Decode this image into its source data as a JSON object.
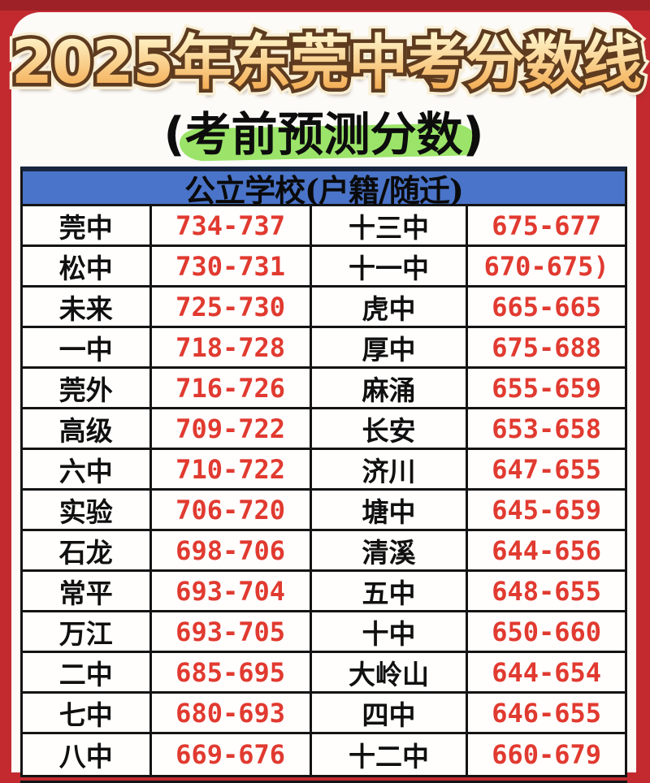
{
  "poster": {
    "title": "2025年东莞中考分数线",
    "subtitle": "(考前预测分数)",
    "section_header": "公立学校(户籍/随迁)"
  },
  "colors": {
    "frame-red": "#c22a30",
    "frame-red-dark": "#9e2127",
    "card-bg": "#fcfbf8",
    "header-blue": "#4a74c9",
    "border-navy": "#17253f",
    "ink-black": "#141414",
    "score-red": "#e13a30",
    "highlight-green": "#9be469",
    "gold-light": "#fef2c6",
    "gold-dark": "#f4ae55",
    "outline-brown": "#5e3b1e",
    "stroke-cream": "#f9efd6"
  },
  "table": {
    "rows": [
      {
        "school_left": "莞中",
        "score_left": "734-737",
        "school_right": "十三中",
        "score_right": "675-677"
      },
      {
        "school_left": "松中",
        "score_left": "730-731",
        "school_right": "十一中",
        "score_right": "670-675)"
      },
      {
        "school_left": "未来",
        "score_left": "725-730",
        "school_right": "虎中",
        "score_right": "665-665"
      },
      {
        "school_left": "一中",
        "score_left": "718-728",
        "school_right": "厚中",
        "score_right": "675-688"
      },
      {
        "school_left": "莞外",
        "score_left": "716-726",
        "school_right": "麻涌",
        "score_right": "655-659"
      },
      {
        "school_left": "高级",
        "score_left": "709-722",
        "school_right": "长安",
        "score_right": "653-658"
      },
      {
        "school_left": "六中",
        "score_left": "710-722",
        "school_right": "济川",
        "score_right": "647-655"
      },
      {
        "school_left": "实验",
        "score_left": "706-720",
        "school_right": "塘中",
        "score_right": "645-659"
      },
      {
        "school_left": "石龙",
        "score_left": "698-706",
        "school_right": "清溪",
        "score_right": "644-656"
      },
      {
        "school_left": "常平",
        "score_left": "693-704",
        "school_right": "五中",
        "score_right": "648-655"
      },
      {
        "school_left": "万江",
        "score_left": "693-705",
        "school_right": "十中",
        "score_right": "650-660"
      },
      {
        "school_left": "二中",
        "score_left": "685-695",
        "school_right": "大岭山",
        "score_right": "644-654"
      },
      {
        "school_left": "七中",
        "score_left": "680-693",
        "school_right": "四中",
        "score_right": "646-655"
      },
      {
        "school_left": "八中",
        "score_left": "669-676",
        "school_right": "十二中",
        "score_right": "660-679"
      }
    ]
  }
}
